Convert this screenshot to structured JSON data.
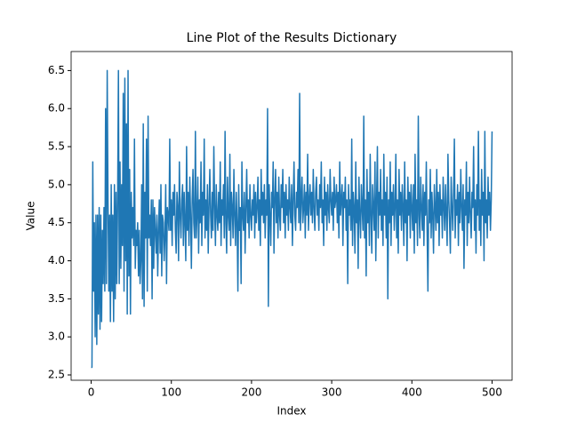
{
  "chart_data": {
    "type": "line",
    "title": "Line Plot of the Results Dictionary",
    "x_label": "Index",
    "y_label": "Value",
    "color": "#1f77b4",
    "xlim": [
      -25,
      525
    ],
    "xticks": [
      0,
      100,
      200,
      300,
      400,
      500
    ],
    "ylim": [
      2.43,
      6.75
    ],
    "yticks": [
      2.5,
      {
        "value": 3,
        "label": "3.0"
      },
      3.5,
      {
        "value": 4,
        "label": "4.0"
      },
      4.5,
      {
        "value": 5,
        "label": "5.0"
      },
      5.5,
      {
        "value": 6,
        "label": "6.0"
      },
      6.5
    ],
    "values": [
      2.6,
      2.6,
      5.3,
      3.6,
      4.5,
      3.0,
      4.6,
      2.9,
      4.6,
      3.3,
      4.7,
      3.1,
      4.6,
      3.2,
      4.4,
      3.7,
      4.7,
      3.6,
      6.0,
      3.7,
      6.5,
      4.8,
      3.6,
      4.6,
      3.2,
      5.0,
      3.6,
      4.6,
      3.2,
      5.0,
      3.5,
      4.9,
      3.7,
      4.8,
      6.5,
      3.7,
      5.3,
      3.9,
      5.0,
      4.2,
      6.2,
      3.6,
      6.4,
      4.0,
      5.8,
      3.3,
      6.5,
      3.8,
      5.2,
      3.3,
      4.9,
      4.3,
      4.7,
      4.2,
      5.6,
      3.9,
      4.4,
      4.2,
      4.5,
      3.8,
      4.4,
      3.7,
      4.0,
      5.0,
      3.5,
      5.8,
      3.4,
      4.9,
      4.3,
      5.6,
      3.6,
      5.9,
      4.3,
      4.6,
      4.2,
      4.8,
      3.5,
      4.8,
      3.9,
      4.7,
      4.4,
      4.1,
      4.6,
      3.8,
      4.4,
      4.8,
      4.1,
      5.0,
      3.8,
      4.6,
      4.5,
      4.0,
      4.3,
      5.0,
      3.7,
      4.7,
      4.6,
      4.4,
      5.6,
      4.4,
      4.8,
      4.2,
      4.9,
      4.6,
      5.0,
      4.4,
      4.1,
      4.9,
      4.7,
      4.0,
      5.3,
      4.6,
      4.3,
      4.8,
      5.0,
      4.2,
      4.9,
      4.5,
      4.0,
      5.5,
      4.4,
      4.9,
      4.2,
      5.1,
      4.6,
      3.9,
      4.8,
      5.2,
      4.5,
      4.3,
      5.7,
      4.3,
      4.6,
      5.1,
      4.1,
      4.8,
      4.5,
      5.3,
      4.2,
      4.9,
      4.6,
      5.6,
      4.3,
      4.8,
      4.4,
      5.0,
      4.1,
      4.7,
      5.2,
      4.6,
      4.3,
      4.9,
      4.4,
      5.5,
      4.7,
      4.2,
      5.0,
      4.6,
      4.4,
      4.9,
      4.5,
      5.3,
      4.2,
      4.8,
      4.6,
      5.0,
      4.3,
      5.7,
      4.5,
      4.1,
      5.1,
      4.6,
      4.4,
      5.4,
      4.2,
      4.9,
      4.7,
      4.3,
      5.2,
      4.6,
      4.2,
      4.9,
      4.5,
      3.6,
      5.0,
      4.4,
      4.7,
      3.7,
      5.3,
      4.6,
      4.4,
      4.9,
      4.1,
      4.7,
      5.2,
      4.5,
      4.8,
      4.3,
      5.0,
      4.6,
      4.4,
      4.8,
      4.6,
      5.0,
      4.3,
      4.9,
      4.5,
      4.7,
      5.1,
      4.4,
      4.8,
      4.2,
      5.2,
      4.6,
      4.9,
      4.5,
      5.0,
      4.3,
      4.8,
      4.6,
      6.0,
      3.4,
      5.0,
      4.6,
      4.2,
      4.9,
      4.7,
      5.3,
      4.1,
      4.8,
      5.2,
      4.5,
      4.9,
      4.3,
      5.1,
      4.6,
      4.4,
      5.0,
      4.7,
      5.2,
      4.5,
      4.9,
      4.3,
      5.0,
      4.6,
      4.8,
      4.4,
      5.1,
      4.7,
      4.5,
      5.0,
      4.2,
      4.8,
      5.3,
      4.6,
      4.4,
      4.9,
      4.7,
      5.2,
      4.5,
      6.2,
      4.4,
      4.8,
      5.1,
      4.5,
      4.7,
      5.0,
      4.3,
      4.9,
      4.6,
      5.4,
      4.4,
      4.8,
      5.0,
      4.6,
      4.9,
      4.5,
      5.2,
      4.7,
      4.4,
      4.9,
      5.1,
      4.6,
      4.8,
      4.4,
      5.0,
      4.7,
      5.3,
      4.5,
      4.8,
      4.2,
      5.1,
      4.6,
      4.9,
      4.4,
      5.0,
      4.7,
      4.5,
      5.2,
      4.8,
      4.6,
      4.9,
      4.4,
      5.1,
      4.7,
      4.8,
      5.0,
      4.5,
      4.9,
      4.3,
      5.3,
      4.6,
      4.8,
      5.0,
      4.2,
      4.9,
      4.7,
      5.1,
      4.4,
      4.8,
      3.7,
      5.0,
      4.6,
      4.8,
      4.4,
      5.6,
      4.2,
      4.9,
      4.7,
      4.1,
      5.3,
      4.5,
      4.8,
      3.9,
      5.1,
      4.6,
      4.3,
      5.0,
      4.7,
      4.4,
      5.9,
      4.3,
      4.8,
      3.8,
      5.2,
      4.5,
      4.9,
      4.2,
      5.4,
      4.6,
      4.1,
      5.0,
      4.7,
      4.4,
      5.3,
      4.0,
      4.8,
      5.5,
      4.3,
      4.9,
      4.6,
      5.2,
      4.4,
      4.8,
      4.2,
      5.4,
      4.6,
      4.9,
      4.3,
      5.1,
      3.5,
      4.8,
      4.5,
      5.3,
      4.2,
      4.9,
      4.6,
      5.0,
      4.4,
      4.7,
      5.4,
      4.3,
      4.8,
      4.1,
      5.2,
      4.6,
      4.9,
      4.4,
      5.0,
      4.7,
      4.2,
      5.3,
      4.5,
      4.8,
      4.0,
      5.1,
      4.6,
      4.9,
      4.3,
      5.0,
      4.7,
      4.4,
      5.0,
      4.1,
      5.4,
      4.5,
      4.8,
      4.2,
      5.9,
      4.6,
      4.3,
      5.1,
      4.7,
      4.4,
      5.0,
      4.2,
      4.9,
      4.6,
      5.3,
      4.4,
      3.6,
      4.8,
      4.5,
      5.2,
      4.3,
      4.9,
      4.6,
      4.1,
      5.0,
      4.7,
      4.4,
      5.2,
      4.5,
      4.9,
      4.2,
      5.0,
      4.6,
      4.8,
      4.3,
      5.1,
      4.7,
      4.4,
      5.0,
      4.6,
      4.2,
      5.4,
      4.8,
      4.5,
      4.1,
      5.1,
      4.7,
      4.4,
      4.9,
      5.6,
      4.3,
      4.8,
      4.6,
      5.0,
      4.2,
      4.9,
      4.5,
      5.2,
      4.7,
      4.4,
      5.0,
      3.9,
      4.8,
      4.6,
      5.3,
      4.2,
      4.9,
      4.5,
      5.1,
      4.6,
      4.3,
      4.9,
      4.7,
      5.5,
      4.4,
      4.8,
      4.1,
      5.0,
      4.6,
      5.7,
      4.4,
      4.8,
      4.2,
      5.2,
      4.6,
      4.9,
      4.0,
      5.7,
      4.5,
      4.8,
      4.3,
      5.1,
      4.6,
      4.9,
      4.4,
      4.8,
      5.7
    ]
  }
}
